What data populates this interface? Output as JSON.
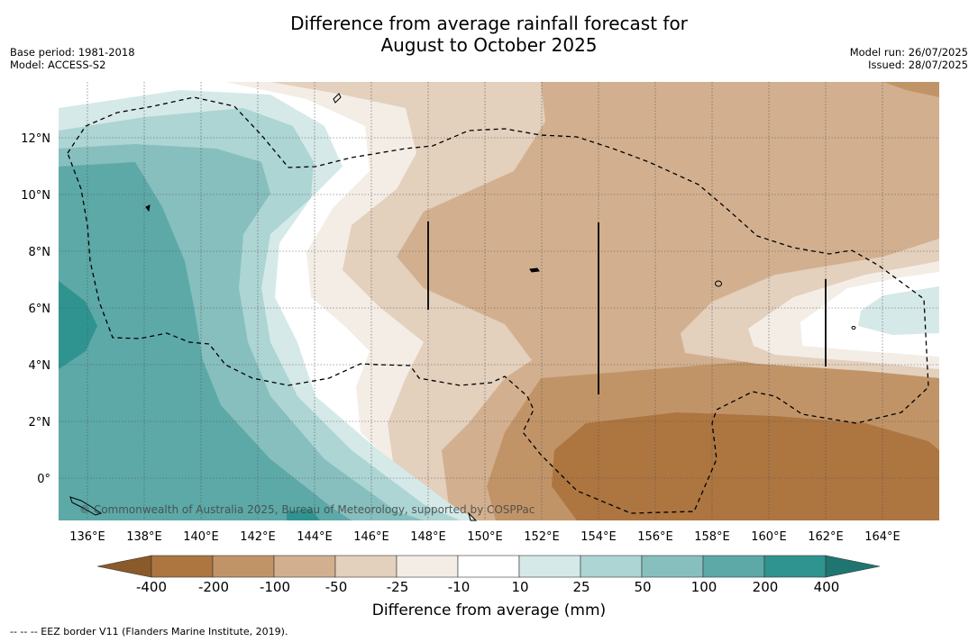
{
  "title_line1": "Difference from average rainfall forecast for",
  "title_line2": "August to October 2025",
  "base_period": "Base period: 1981-2018",
  "model": "Model: ACCESS-S2",
  "model_run": "Model run: 26/07/2025",
  "issued": "Issued: 28/07/2025",
  "copyright": "© Commonwealth of Australia 2025, Bureau of Meteorology, supported by COSPPac",
  "lon_labels": [
    "136°E",
    "138°E",
    "140°E",
    "142°E",
    "144°E",
    "146°E",
    "148°E",
    "150°E",
    "152°E",
    "154°E",
    "156°E",
    "158°E",
    "160°E",
    "162°E",
    "164°E"
  ],
  "lat_labels": [
    "12°N",
    "10°N",
    "8°N",
    "6°N",
    "4°N",
    "2°N",
    "0°"
  ],
  "colorbar": {
    "ticks": [
      "-400",
      "-200",
      "-100",
      "-50",
      "-25",
      "-10",
      "10",
      "25",
      "50",
      "100",
      "200",
      "400"
    ],
    "colors": [
      "#8b5a2b",
      "#ad7540",
      "#c19468",
      "#d2b08f",
      "#e3d0bd",
      "#f3ede6",
      "#ffffff",
      "#d5e9e8",
      "#acd5d4",
      "#86bfbe",
      "#5ca9a8",
      "#2f9490",
      "#1f7570"
    ],
    "title": "Difference from average (mm)"
  },
  "footnote": "--  --  -- EEZ border V11 (Flanders Marine Institute, 2019)."
}
